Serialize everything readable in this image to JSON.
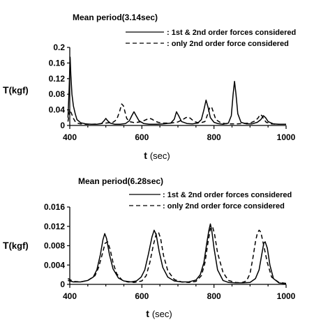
{
  "chart_data": [
    {
      "type": "line",
      "title": "Mean period(3.14sec)",
      "ylabel_main": "T",
      "ylabel_unit": "(kgf)",
      "xlabel_main": "t",
      "xlabel_unit": "(sec)",
      "xlim": [
        400,
        1000
      ],
      "ylim": [
        0,
        0.2
      ],
      "xticks": [
        400,
        600,
        800,
        1000
      ],
      "yticks": [
        0,
        0.04,
        0.08,
        0.12,
        0.16,
        0.2
      ],
      "ytick_labels": [
        "0",
        "0.04",
        "0.08",
        "0.12",
        "0.16",
        "0.2"
      ],
      "legend": [
        "1st & 2nd order forces considered",
        "only 2nd order force considered"
      ],
      "series": [
        {
          "name": "1st & 2nd order forces considered",
          "style": "solid",
          "x": [
            395,
            398,
            401,
            403,
            406,
            410,
            415,
            420,
            430,
            445,
            460,
            475,
            488,
            495,
            500,
            505,
            512,
            525,
            540,
            555,
            565,
            572,
            578,
            584,
            592,
            605,
            620,
            640,
            660,
            680,
            690,
            696,
            702,
            710,
            725,
            740,
            755,
            765,
            772,
            778,
            784,
            790,
            800,
            810,
            825,
            840,
            848,
            853,
            857,
            861,
            866,
            875,
            890,
            905,
            920,
            930,
            937,
            943,
            950,
            965,
            980,
            1000
          ],
          "y": [
            0.02,
            0.09,
            0.175,
            0.13,
            0.08,
            0.05,
            0.03,
            0.015,
            0.007,
            0.004,
            0.003,
            0.003,
            0.005,
            0.012,
            0.018,
            0.012,
            0.006,
            0.003,
            0.003,
            0.005,
            0.012,
            0.025,
            0.035,
            0.025,
            0.012,
            0.005,
            0.003,
            0.003,
            0.004,
            0.006,
            0.016,
            0.035,
            0.025,
            0.01,
            0.005,
            0.004,
            0.006,
            0.015,
            0.04,
            0.065,
            0.045,
            0.02,
            0.008,
            0.005,
            0.003,
            0.006,
            0.025,
            0.08,
            0.113,
            0.08,
            0.03,
            0.008,
            0.004,
            0.004,
            0.008,
            0.015,
            0.025,
            0.02,
            0.01,
            0.004,
            0.003,
            0.003
          ]
        },
        {
          "name": "only 2nd order force considered",
          "style": "dashed",
          "x": [
            395,
            400,
            405,
            410,
            415,
            420,
            430,
            445,
            460,
            480,
            500,
            520,
            530,
            538,
            544,
            549,
            553,
            558,
            565,
            580,
            600,
            615,
            622,
            628,
            635,
            645,
            660,
            680,
            700,
            715,
            722,
            728,
            735,
            745,
            760,
            775,
            783,
            788,
            793,
            798,
            805,
            820,
            840,
            860,
            880,
            900,
            915,
            923,
            928,
            933,
            938,
            945,
            960,
            980,
            1000
          ],
          "y": [
            0.01,
            0.04,
            0.03,
            0.018,
            0.01,
            0.006,
            0.004,
            0.003,
            0.003,
            0.004,
            0.006,
            0.008,
            0.015,
            0.035,
            0.055,
            0.05,
            0.035,
            0.018,
            0.01,
            0.007,
            0.01,
            0.016,
            0.018,
            0.016,
            0.012,
            0.008,
            0.006,
            0.006,
            0.009,
            0.016,
            0.02,
            0.022,
            0.018,
            0.01,
            0.006,
            0.01,
            0.03,
            0.045,
            0.048,
            0.035,
            0.015,
            0.006,
            0.004,
            0.004,
            0.005,
            0.006,
            0.012,
            0.02,
            0.028,
            0.025,
            0.016,
            0.008,
            0.004,
            0.003,
            0.003
          ]
        }
      ]
    },
    {
      "type": "line",
      "title": "Mean period(6.28sec)",
      "ylabel_main": "T",
      "ylabel_unit": "(kgf)",
      "xlabel_main": "t",
      "xlabel_unit": "(sec)",
      "xlim": [
        400,
        1000
      ],
      "ylim": [
        0,
        0.016
      ],
      "xticks": [
        400,
        600,
        800,
        1000
      ],
      "yticks": [
        0,
        0.004,
        0.008,
        0.012,
        0.016
      ],
      "ytick_labels": [
        "0",
        "0.004",
        "0.008",
        "0.012",
        "0.016"
      ],
      "legend": [
        "1st & 2nd order forces considered",
        "only 2nd order force considered"
      ],
      "series": [
        {
          "name": "1st & 2nd order forces considered",
          "style": "solid",
          "x": [
            395,
            410,
            430,
            450,
            465,
            475,
            485,
            492,
            497,
            502,
            510,
            520,
            535,
            550,
            570,
            585,
            598,
            608,
            618,
            628,
            634,
            640,
            648,
            658,
            672,
            690,
            710,
            730,
            750,
            762,
            772,
            780,
            786,
            790,
            794,
            800,
            810,
            825,
            840,
            860,
            880,
            900,
            915,
            925,
            932,
            938,
            942,
            948,
            955,
            965,
            980,
            1000
          ],
          "y": [
            0.0008,
            0.0005,
            0.0005,
            0.0008,
            0.0015,
            0.003,
            0.0062,
            0.0092,
            0.0105,
            0.0095,
            0.0062,
            0.0032,
            0.0013,
            0.0007,
            0.0005,
            0.0007,
            0.0015,
            0.003,
            0.0062,
            0.0098,
            0.0112,
            0.0102,
            0.0068,
            0.0035,
            0.0015,
            0.0007,
            0.0005,
            0.0005,
            0.0009,
            0.002,
            0.0045,
            0.0085,
            0.0112,
            0.0125,
            0.011,
            0.0075,
            0.003,
            0.0008,
            0.0004,
            0.0003,
            0.0003,
            0.0004,
            0.0012,
            0.003,
            0.006,
            0.0085,
            0.0088,
            0.0075,
            0.004,
            0.0012,
            0.0003,
            0.0001
          ]
        },
        {
          "name": "only 2nd order force considered",
          "style": "dashed",
          "x": [
            395,
            410,
            430,
            450,
            470,
            480,
            490,
            498,
            505,
            512,
            520,
            530,
            545,
            560,
            580,
            600,
            612,
            622,
            632,
            640,
            646,
            652,
            660,
            672,
            690,
            710,
            730,
            750,
            765,
            775,
            783,
            790,
            796,
            802,
            810,
            825,
            840,
            860,
            875,
            890,
            900,
            908,
            915,
            920,
            925,
            930,
            938,
            948,
            960,
            980,
            1000
          ],
          "y": [
            0.0012,
            0.0006,
            0.0005,
            0.0008,
            0.0018,
            0.0035,
            0.0062,
            0.0085,
            0.0088,
            0.0072,
            0.0045,
            0.0022,
            0.0009,
            0.0005,
            0.0004,
            0.0007,
            0.0018,
            0.0045,
            0.0082,
            0.0105,
            0.0108,
            0.0095,
            0.006,
            0.0028,
            0.001,
            0.0005,
            0.0004,
            0.0006,
            0.0018,
            0.0045,
            0.0085,
            0.0115,
            0.012,
            0.0102,
            0.0065,
            0.0025,
            0.0008,
            0.0004,
            0.0003,
            0.0007,
            0.0022,
            0.0055,
            0.0088,
            0.0105,
            0.0112,
            0.0108,
            0.008,
            0.0045,
            0.0015,
            0.0004,
            0.0002
          ]
        }
      ]
    }
  ]
}
